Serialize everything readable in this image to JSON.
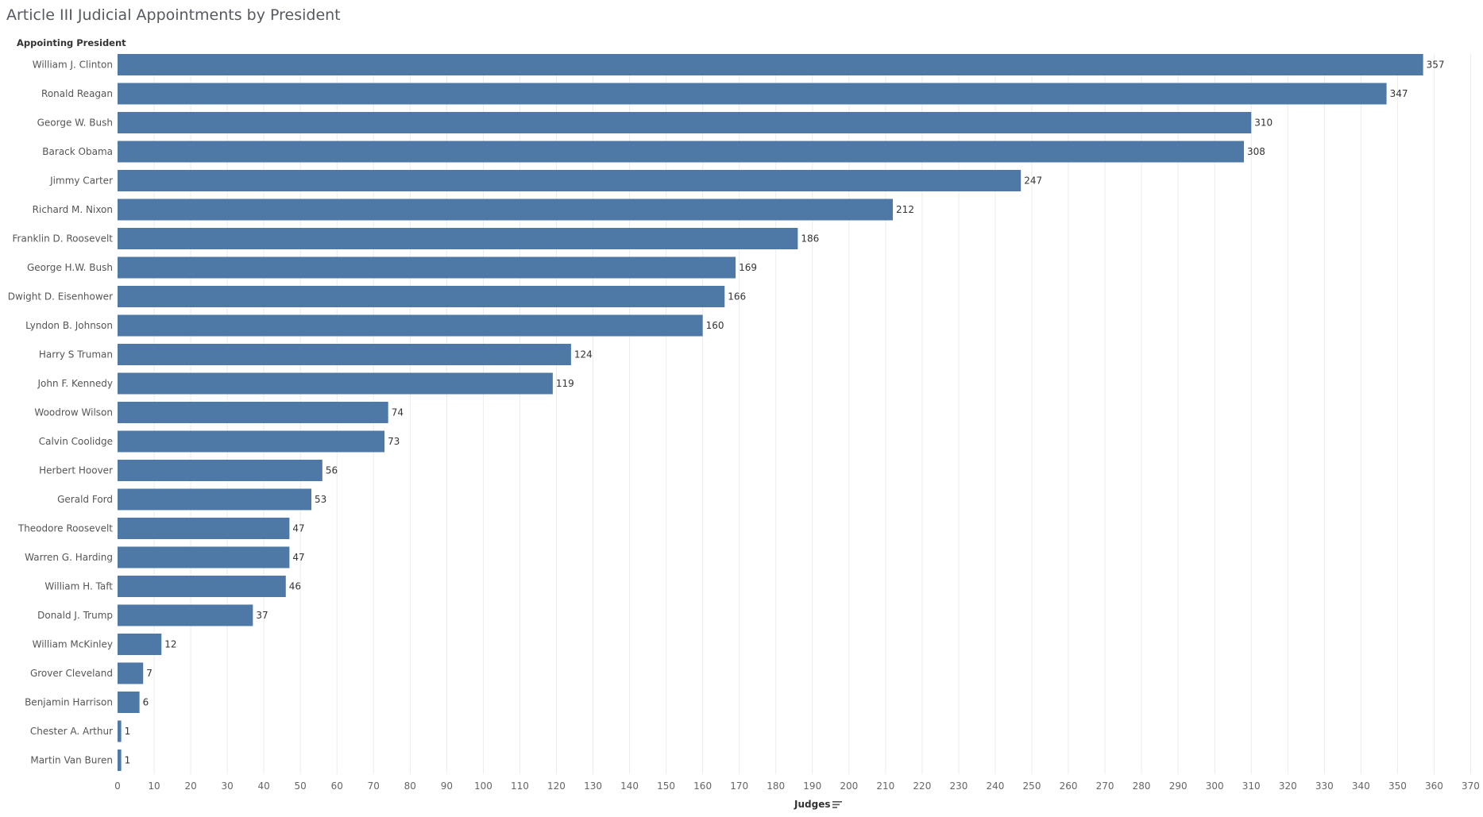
{
  "title": "Article III Judicial Appointments by President",
  "row_header": "Appointing President",
  "x_axis_title": "Judges",
  "sort_icon": "sort-descending-icon",
  "chart_data": {
    "type": "bar",
    "orientation": "horizontal",
    "title": "Article III Judicial Appointments by President",
    "xlabel": "Judges",
    "ylabel": "Appointing President",
    "xlim": [
      0,
      370
    ],
    "x_ticks": [
      0,
      10,
      20,
      30,
      40,
      50,
      60,
      70,
      80,
      90,
      100,
      110,
      120,
      130,
      140,
      150,
      160,
      170,
      180,
      190,
      200,
      210,
      220,
      230,
      240,
      250,
      260,
      270,
      280,
      290,
      300,
      310,
      320,
      330,
      340,
      350,
      360,
      370
    ],
    "grid": "vertical",
    "bar_color": "#4e79a7",
    "categories": [
      "William J. Clinton",
      "Ronald Reagan",
      "George W. Bush",
      "Barack Obama",
      "Jimmy Carter",
      "Richard M. Nixon",
      "Franklin D. Roosevelt",
      "George H.W. Bush",
      "Dwight D. Eisenhower",
      "Lyndon B. Johnson",
      "Harry S Truman",
      "John F. Kennedy",
      "Woodrow Wilson",
      "Calvin Coolidge",
      "Herbert Hoover",
      "Gerald Ford",
      "Theodore Roosevelt",
      "Warren G. Harding",
      "William H. Taft",
      "Donald J. Trump",
      "William McKinley",
      "Grover Cleveland",
      "Benjamin Harrison",
      "Chester A. Arthur",
      "Martin Van Buren"
    ],
    "values": [
      357,
      347,
      310,
      308,
      247,
      212,
      186,
      169,
      166,
      160,
      124,
      119,
      74,
      73,
      56,
      53,
      47,
      47,
      46,
      37,
      12,
      7,
      6,
      1,
      1
    ]
  }
}
